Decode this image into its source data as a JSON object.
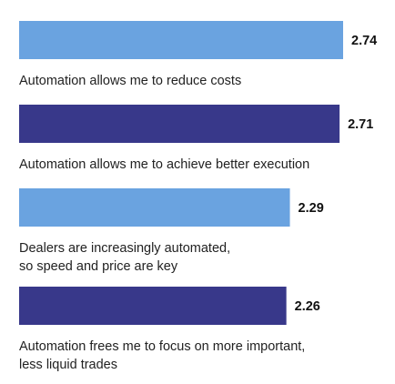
{
  "chart_data": {
    "type": "bar",
    "orientation": "horizontal",
    "categories": [
      [
        "Automation allows me to reduce costs"
      ],
      [
        "Automation allows me to achieve better execution"
      ],
      [
        "Dealers are increasingly automated,",
        "so speed and price are key"
      ],
      [
        "Automation frees me to focus on more important,",
        "less liquid trades"
      ]
    ],
    "values": [
      2.74,
      2.71,
      2.29,
      2.26
    ],
    "value_labels": [
      "2.74",
      "2.71",
      "2.29",
      "2.26"
    ],
    "bar_colors": [
      "#6aa3e0",
      "#38388a",
      "#6aa3e0",
      "#38388a"
    ],
    "xlim": [
      0,
      2.74
    ],
    "grid": false,
    "legend": "none"
  }
}
